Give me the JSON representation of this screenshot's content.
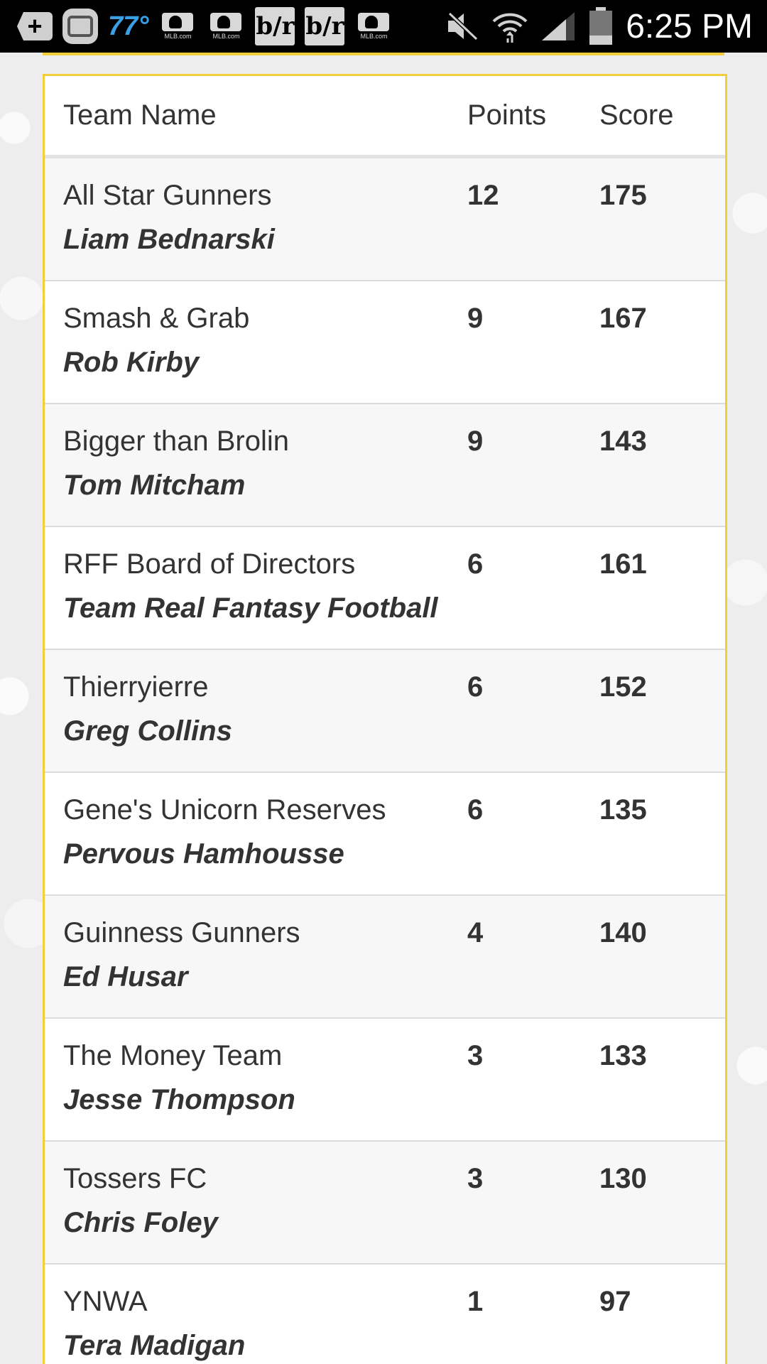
{
  "status_bar": {
    "temperature": "77°",
    "time": "6:25 PM",
    "mlb_caption": "MLB.com",
    "br_label": "b/r",
    "icons": [
      "add-icon",
      "robot-icon",
      "mlb-icon",
      "mlb-icon",
      "br-icon",
      "br-icon",
      "mlb-icon",
      "mute-icon",
      "wifi-icon",
      "signal-icon",
      "battery-icon"
    ]
  },
  "table": {
    "headers": {
      "team_name": "Team Name",
      "points": "Points",
      "score": "Score"
    },
    "rows": [
      {
        "team": "All Star Gunners",
        "manager": "Liam Bednarski",
        "points": "12",
        "score": "175"
      },
      {
        "team": "Smash & Grab",
        "manager": "Rob Kirby",
        "points": "9",
        "score": "167"
      },
      {
        "team": "Bigger than Brolin",
        "manager": "Tom Mitcham",
        "points": "9",
        "score": "143"
      },
      {
        "team": "RFF Board of Directors",
        "manager": "Team Real Fantasy Football",
        "points": "6",
        "score": "161"
      },
      {
        "team": "Thierryierre",
        "manager": "Greg Collins",
        "points": "6",
        "score": "152"
      },
      {
        "team": "Gene's Unicorn Reserves",
        "manager": "Pervous Hamhousse",
        "points": "6",
        "score": "135"
      },
      {
        "team": "Guinness Gunners",
        "manager": "Ed Husar",
        "points": "4",
        "score": "140"
      },
      {
        "team": "The Money Team",
        "manager": "Jesse Thompson",
        "points": "3",
        "score": "133"
      },
      {
        "team": "Tossers FC",
        "manager": "Chris Foley",
        "points": "3",
        "score": "130"
      },
      {
        "team": "YNWA",
        "manager": "Tera Madigan",
        "points": "1",
        "score": "97"
      }
    ]
  },
  "colors": {
    "accent_border": "#f2cf3a",
    "temperature": "#3aa0e6",
    "text": "#333333"
  }
}
